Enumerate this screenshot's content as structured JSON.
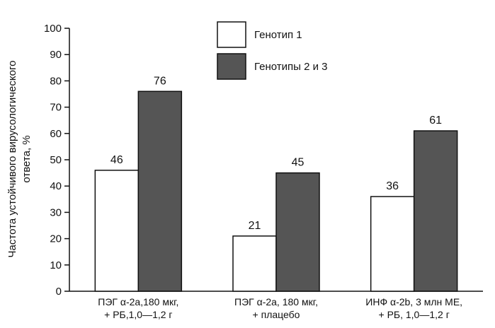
{
  "chart_data": {
    "type": "bar",
    "categories": [
      [
        "ПЭГ α-2а,180 мкг,",
        "+ РБ,1,0—1,2 г"
      ],
      [
        "ПЭГ α-2а, 180 мкг,",
        "+ плацебо"
      ],
      [
        "ИНФ α-2b, 3 млн МЕ,",
        "+ РБ, 1,0—1,2 г"
      ]
    ],
    "series": [
      {
        "name": "Генотип 1",
        "values": [
          46,
          21,
          36
        ],
        "color": "#ffffff"
      },
      {
        "name": "Генотипы 2 и 3",
        "values": [
          76,
          45,
          61
        ],
        "color": "#555555"
      }
    ],
    "ylabel": "Частота устойчивого вирусологического ответа, %",
    "ylim": [
      0,
      100
    ],
    "yticks": [
      0,
      10,
      20,
      30,
      40,
      50,
      60,
      70,
      80,
      90,
      100
    ],
    "grid": false,
    "legend": "top-center"
  }
}
